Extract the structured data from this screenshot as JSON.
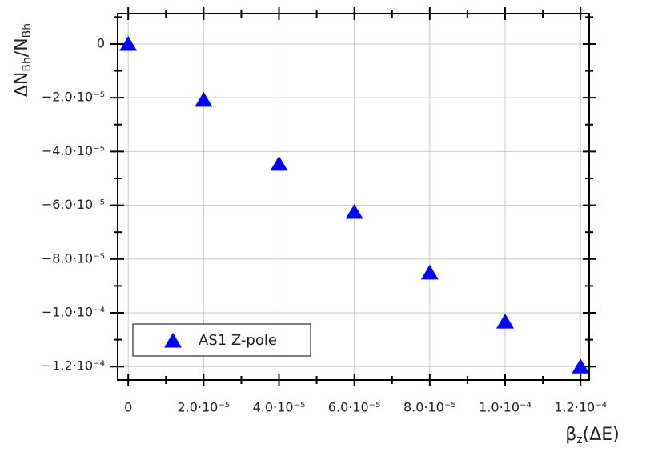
{
  "chart_data": {
    "type": "scatter",
    "x_label": [
      "β",
      "z",
      "(ΔE)"
    ],
    "y_label": [
      "ΔN",
      "Bh",
      "/N",
      "Bh"
    ],
    "x": [
      0,
      2e-05,
      4e-05,
      6e-05,
      8e-05,
      0.0001,
      0.00012
    ],
    "series": [
      {
        "name": "AS1 Z-pole",
        "color": "#0000ff",
        "marker": "triangle",
        "values": [
          0,
          -2.08e-05,
          -4.46e-05,
          -6.25e-05,
          -8.51e-05,
          -0.0001033,
          -0.00012
        ]
      }
    ],
    "xlim": [
      -2.8e-06,
      0.0001223
    ],
    "ylim": [
      -0.000125,
      1.13e-05
    ],
    "xticks": [
      0,
      {
        "value": 2e-05,
        "label": "2.0·10⁻⁵"
      },
      {
        "value": 4e-05,
        "label": "4.0·10⁻⁵"
      },
      {
        "value": 6e-05,
        "label": "6.0·10⁻⁵"
      },
      {
        "value": 8e-05,
        "label": "8.0·10⁻⁵"
      },
      {
        "value": 0.0001,
        "label": "1.0·10⁻⁴"
      },
      {
        "value": 0.00012,
        "label": "1.2·10⁻⁴"
      }
    ],
    "yticks": [
      0,
      {
        "value": -2e-05,
        "label": "−2.0·10⁻⁵"
      },
      {
        "value": -4e-05,
        "label": "−4.0·10⁻⁵"
      },
      {
        "value": -6e-05,
        "label": "−6.0·10⁻⁵"
      },
      {
        "value": -8e-05,
        "label": "−8.0·10⁻⁵"
      },
      {
        "value": -0.0001,
        "label": "−1.0·10⁻⁴"
      },
      {
        "value": -0.00012,
        "label": "−1.2·10⁻⁴"
      }
    ],
    "xminorticks": [
      1e-05,
      3e-05,
      5e-05,
      7e-05,
      9e-05,
      0.00011
    ],
    "yminorticks": [
      1e-05,
      -1e-05,
      -3e-05,
      -5e-05,
      -7e-05,
      -9e-05,
      -0.00011
    ],
    "grid": true,
    "legend": "lower left"
  }
}
